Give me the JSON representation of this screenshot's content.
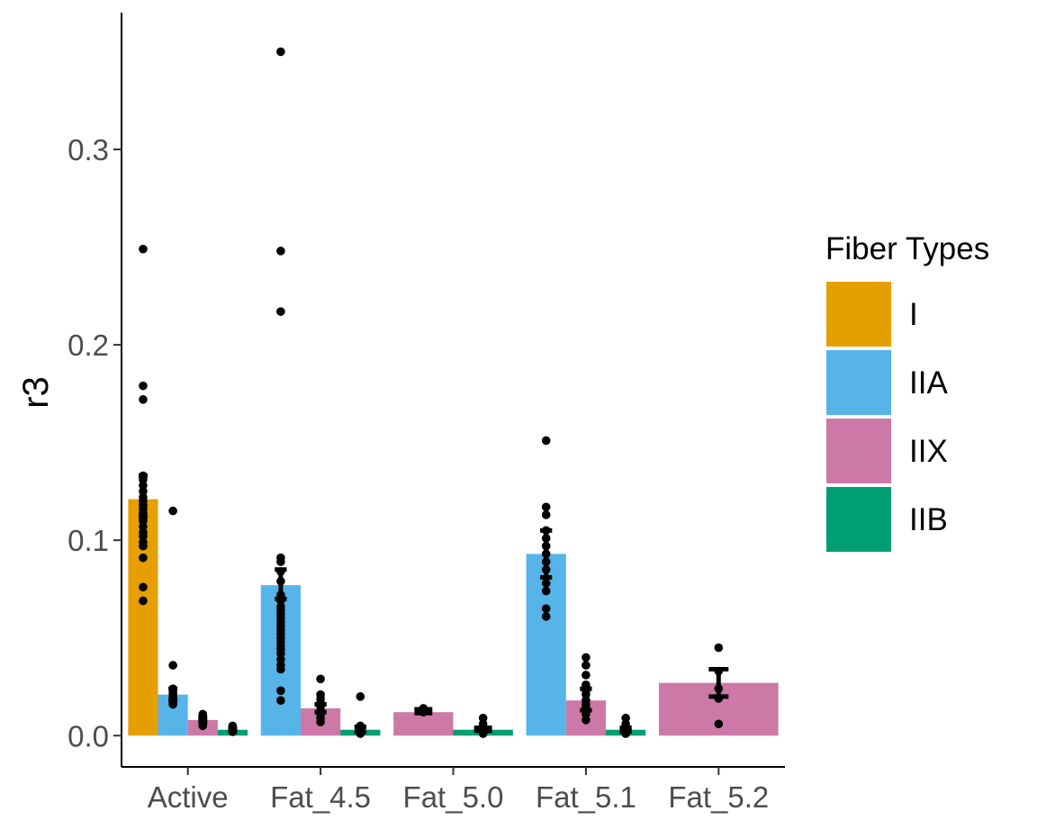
{
  "chart_data": {
    "type": "bar",
    "title": "",
    "xlabel": "",
    "ylabel": "r3",
    "ylim": [
      -0.016,
      0.37
    ],
    "yticks": [
      0.0,
      0.1,
      0.2,
      0.3
    ],
    "ytick_labels": [
      "0.0",
      "0.1",
      "0.2",
      "0.3"
    ],
    "grid": false,
    "legend": {
      "title": "Fiber Types",
      "position": "right",
      "entries": [
        {
          "label": "I",
          "color": "#E69F00"
        },
        {
          "label": "IIA",
          "color": "#56B4E9"
        },
        {
          "label": "IIX",
          "color": "#CC79A7"
        },
        {
          "label": "IIB",
          "color": "#009E73"
        }
      ]
    },
    "categories": [
      "Active",
      "Fat_4.5",
      "Fat_5.0",
      "Fat_5.1",
      "Fat_5.2"
    ],
    "groups": [
      {
        "category": "Active",
        "bars": [
          {
            "type": "I",
            "value": 0.121,
            "err": [
              0.112,
              0.133
            ],
            "points": [
              0.249,
              0.179,
              0.172,
              0.133,
              0.131,
              0.128,
              0.125,
              0.122,
              0.12,
              0.118,
              0.116,
              0.114,
              0.112,
              0.11,
              0.107,
              0.104,
              0.102,
              0.099,
              0.097,
              0.091,
              0.076,
              0.069
            ]
          },
          {
            "type": "IIA",
            "value": 0.021,
            "err": [
              0.018,
              0.024
            ],
            "points": [
              0.115,
              0.036,
              0.024,
              0.022,
              0.021,
              0.02,
              0.019,
              0.018,
              0.017,
              0.016
            ]
          },
          {
            "type": "IIX",
            "value": 0.008,
            "err": [
              0.007,
              0.009
            ],
            "points": [
              0.011,
              0.01,
              0.009,
              0.008,
              0.007,
              0.006,
              0.005
            ]
          },
          {
            "type": "IIB",
            "value": 0.003,
            "err": [
              0.0025,
              0.0035
            ],
            "points": [
              0.005,
              0.004,
              0.003,
              0.002
            ]
          }
        ]
      },
      {
        "category": "Fat_4.5",
        "bars": [
          {
            "type": "IIA",
            "value": 0.077,
            "err": [
              0.07,
              0.085
            ],
            "points": [
              0.35,
              0.248,
              0.217,
              0.091,
              0.089,
              0.084,
              0.079,
              0.072,
              0.069,
              0.066,
              0.064,
              0.062,
              0.06,
              0.058,
              0.056,
              0.054,
              0.052,
              0.05,
              0.048,
              0.046,
              0.044,
              0.042,
              0.039,
              0.036,
              0.034,
              0.023,
              0.018
            ]
          },
          {
            "type": "IIX",
            "value": 0.014,
            "err": [
              0.012,
              0.016
            ],
            "points": [
              0.029,
              0.021,
              0.019,
              0.017,
              0.015,
              0.013,
              0.011,
              0.009,
              0.007
            ]
          },
          {
            "type": "IIB",
            "value": 0.003,
            "err": [
              0.002,
              0.0045
            ],
            "points": [
              0.02,
              0.005,
              0.004,
              0.003,
              0.002,
              0.001
            ]
          }
        ]
      },
      {
        "category": "Fat_5.0",
        "bars": [
          {
            "type": "IIX",
            "value": 0.012,
            "err": [
              0.0115,
              0.0135
            ],
            "points": [
              0.014,
              0.013,
              0.012
            ]
          },
          {
            "type": "IIB",
            "value": 0.003,
            "err": [
              0.0025,
              0.004
            ],
            "points": [
              0.009,
              0.006,
              0.004,
              0.003,
              0.002,
              0.001
            ]
          }
        ]
      },
      {
        "category": "Fat_5.1",
        "bars": [
          {
            "type": "IIA",
            "value": 0.093,
            "err": [
              0.081,
              0.105
            ],
            "points": [
              0.151,
              0.117,
              0.113,
              0.105,
              0.101,
              0.097,
              0.093,
              0.089,
              0.085,
              0.078,
              0.074,
              0.065,
              0.061
            ]
          },
          {
            "type": "IIX",
            "value": 0.018,
            "err": [
              0.013,
              0.024
            ],
            "points": [
              0.04,
              0.036,
              0.031,
              0.026,
              0.023,
              0.021,
              0.018,
              0.016,
              0.014,
              0.011,
              0.008
            ]
          },
          {
            "type": "IIB",
            "value": 0.003,
            "err": [
              0.002,
              0.004
            ],
            "points": [
              0.009,
              0.006,
              0.004,
              0.003,
              0.002,
              0.001
            ]
          }
        ]
      },
      {
        "category": "Fat_5.2",
        "bars": [
          {
            "type": "IIX",
            "value": 0.027,
            "err": [
              0.02,
              0.034
            ],
            "points": [
              0.045,
              0.033,
              0.024,
              0.019,
              0.006
            ]
          }
        ]
      }
    ]
  }
}
